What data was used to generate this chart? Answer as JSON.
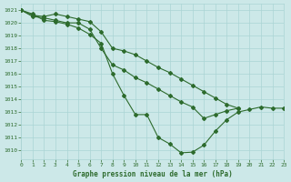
{
  "title": "Graphe pression niveau de la mer (hPa)",
  "bg_color": "#cce8e8",
  "grid_color": "#aad4d4",
  "line_color": "#2d6b2d",
  "xlim": [
    0,
    23
  ],
  "ylim": [
    1009.3,
    1021.5
  ],
  "xticks": [
    0,
    1,
    2,
    3,
    4,
    5,
    6,
    7,
    8,
    9,
    10,
    11,
    12,
    13,
    14,
    15,
    16,
    17,
    18,
    19,
    20,
    21,
    22,
    23
  ],
  "yticks": [
    1010,
    1011,
    1012,
    1013,
    1014,
    1015,
    1016,
    1017,
    1018,
    1019,
    1020,
    1021
  ],
  "series": [
    {
      "x": [
        0,
        1,
        2,
        3,
        4,
        5,
        6,
        7,
        8,
        9,
        10,
        11,
        12,
        13,
        14,
        15,
        16,
        17,
        18,
        19,
        20,
        21,
        22,
        23
      ],
      "y": [
        1021.0,
        1020.7,
        1020.2,
        1020.1,
        1019.9,
        1019.6,
        1019.1,
        1018.4,
        1016.0,
        1014.3,
        1012.8,
        1012.8,
        1011.0,
        1010.5,
        1009.8,
        1009.85,
        1010.4,
        1011.5,
        1012.4,
        1013.0,
        1013.2,
        1013.4,
        1013.3,
        1013.3
      ]
    },
    {
      "x": [
        0,
        1,
        2,
        3,
        4,
        5,
        6,
        7,
        8,
        9,
        10,
        11,
        12,
        13,
        14,
        15,
        16,
        17,
        18,
        19
      ],
      "y": [
        1021.0,
        1020.6,
        1020.5,
        1020.7,
        1020.5,
        1020.3,
        1020.1,
        1019.3,
        1018.0,
        1017.8,
        1017.5,
        1017.0,
        1016.5,
        1016.1,
        1015.6,
        1015.1,
        1014.6,
        1014.1,
        1013.6,
        1013.3
      ]
    },
    {
      "x": [
        0,
        1,
        2,
        3,
        4,
        5,
        6,
        7,
        8,
        9,
        10,
        11,
        12,
        13,
        14,
        15,
        16,
        17,
        18,
        19
      ],
      "y": [
        1021.0,
        1020.5,
        1020.4,
        1020.2,
        1020.0,
        1020.0,
        1019.5,
        1018.0,
        1016.7,
        1016.3,
        1015.7,
        1015.3,
        1014.8,
        1014.3,
        1013.8,
        1013.4,
        1012.5,
        1012.8,
        1013.1,
        1013.3
      ]
    }
  ]
}
